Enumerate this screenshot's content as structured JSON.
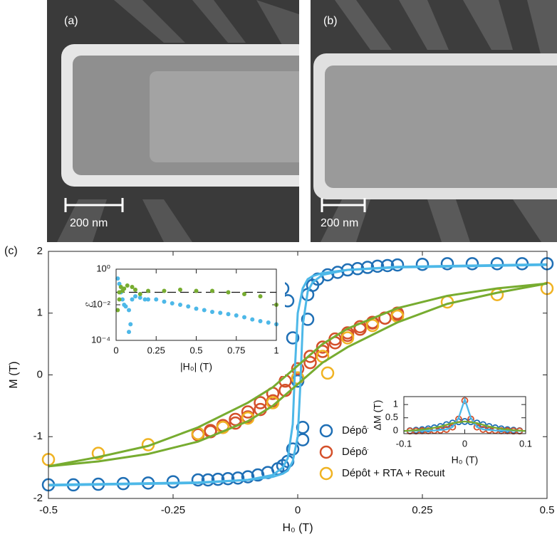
{
  "images": [
    {
      "label": "(a)",
      "scale_bar": "200 nm"
    },
    {
      "label": "(b)",
      "scale_bar": "200 nm"
    }
  ],
  "panel_label": "(c)",
  "chart_data": [
    {
      "type": "scatter",
      "x_label": "H₀ (T)",
      "y_label": "M (T)",
      "xlim": [
        -0.5,
        0.5
      ],
      "xticks": [
        -0.5,
        -0.25,
        0,
        0.25,
        0.5
      ],
      "ylim": [
        -2,
        2
      ],
      "yticks": [
        -2,
        -1,
        0,
        1,
        2
      ],
      "legend": "lower right",
      "series": [
        {
          "name": "Dépôt",
          "color": "#1f6fb5",
          "style": "circles",
          "x": [
            -0.5,
            -0.45,
            -0.4,
            -0.35,
            -0.3,
            -0.25,
            -0.2,
            -0.18,
            -0.16,
            -0.14,
            -0.12,
            -0.1,
            -0.08,
            -0.06,
            -0.04,
            -0.03,
            -0.02,
            -0.01,
            0,
            0.01,
            0.01,
            0.02,
            0.02,
            0.03,
            0.04,
            0.06,
            0.08,
            0.1,
            0.12,
            0.14,
            0.16,
            0.18,
            0.2,
            0.25,
            0.3,
            0.35,
            0.4,
            0.45,
            0.5,
            -0.01,
            -0.02,
            -0.03,
            -0.04,
            -0.06
          ],
          "values": [
            -1.78,
            -1.78,
            -1.77,
            -1.76,
            -1.75,
            -1.73,
            -1.7,
            -1.7,
            -1.69,
            -1.68,
            -1.67,
            -1.65,
            -1.62,
            -1.58,
            -1.52,
            -1.47,
            -1.4,
            -1.2,
            -0.1,
            -0.85,
            -1.05,
            0.9,
            1.3,
            1.45,
            1.55,
            1.62,
            1.66,
            1.7,
            1.72,
            1.74,
            1.76,
            1.77,
            1.78,
            1.79,
            1.8,
            1.8,
            1.8,
            1.8,
            1.8,
            0.6,
            1.2,
            1.4,
            1.5,
            1.6
          ]
        },
        {
          "name": "Dépôt + RTA",
          "color": "#d4502a",
          "style": "circles",
          "x": [
            -0.2,
            -0.175,
            -0.15,
            -0.125,
            -0.1,
            -0.075,
            -0.05,
            -0.025,
            0,
            0.025,
            0.05,
            0.075,
            0.1,
            0.125,
            0.15,
            0.175,
            0.2,
            -0.2,
            -0.175,
            -0.15,
            -0.125,
            -0.1,
            -0.075,
            -0.05,
            -0.025,
            0,
            0.025,
            0.05,
            0.075,
            0.1,
            0.125,
            0.15,
            0.175,
            0.2
          ],
          "values": [
            -0.95,
            -0.9,
            -0.82,
            -0.72,
            -0.6,
            -0.45,
            -0.3,
            -0.1,
            0.1,
            0.3,
            0.45,
            0.58,
            0.68,
            0.78,
            0.85,
            0.92,
            0.98,
            -0.97,
            -0.92,
            -0.85,
            -0.78,
            -0.68,
            -0.56,
            -0.42,
            -0.25,
            -0.05,
            0.2,
            0.38,
            0.52,
            0.64,
            0.74,
            0.84,
            0.92,
            1.0
          ]
        },
        {
          "name": "Dépôt + RTA + Recuit",
          "color": "#f0b323",
          "style": "circles",
          "x": [
            -0.5,
            -0.4,
            -0.3,
            -0.2,
            -0.15,
            -0.1,
            -0.05,
            0,
            0.05,
            0.1,
            0.15,
            0.2,
            0.3,
            0.4,
            0.5,
            0.06
          ],
          "values": [
            -1.37,
            -1.27,
            -1.13,
            -0.95,
            -0.85,
            -0.7,
            -0.45,
            -0.05,
            0.3,
            0.6,
            0.8,
            0.95,
            1.18,
            1.3,
            1.4,
            0.03
          ]
        },
        {
          "color": "#4db8e8",
          "style": "line",
          "x": [
            -0.5,
            -0.2,
            -0.1,
            -0.05,
            -0.03,
            -0.02,
            -0.01,
            0,
            0.005,
            0.01,
            0.02,
            0.03,
            0.05,
            0.1,
            0.2,
            0.5
          ],
          "values": [
            -1.78,
            -1.74,
            -1.7,
            -1.65,
            -1.6,
            -1.55,
            -1.4,
            -1.0,
            -0.2,
            0.8,
            1.35,
            1.5,
            1.62,
            1.7,
            1.75,
            1.79
          ]
        },
        {
          "color": "#4db8e8",
          "style": "line",
          "x": [
            0.5,
            0.2,
            0.1,
            0.05,
            0.03,
            0.02,
            0.01,
            0,
            -0.005,
            -0.01,
            -0.02,
            -0.03,
            -0.05,
            -0.1,
            -0.2,
            -0.5
          ],
          "values": [
            1.78,
            1.74,
            1.7,
            1.65,
            1.6,
            1.55,
            1.4,
            1.0,
            0.2,
            -0.8,
            -1.35,
            -1.5,
            -1.62,
            -1.7,
            -1.75,
            -1.79
          ]
        },
        {
          "color": "#77ac30",
          "style": "line",
          "x": [
            -0.5,
            -0.4,
            -0.3,
            -0.2,
            -0.1,
            -0.05,
            0,
            0.05,
            0.1,
            0.2,
            0.3,
            0.4,
            0.5
          ],
          "values": [
            -1.48,
            -1.4,
            -1.28,
            -1.08,
            -0.75,
            -0.5,
            -0.15,
            0.2,
            0.45,
            0.85,
            1.15,
            1.33,
            1.48
          ]
        },
        {
          "color": "#77ac30",
          "style": "line",
          "x": [
            0.5,
            0.4,
            0.3,
            0.2,
            0.1,
            0.05,
            0,
            -0.05,
            -0.1,
            -0.2,
            -0.3,
            -0.4,
            -0.5
          ],
          "values": [
            1.48,
            1.4,
            1.28,
            1.08,
            0.75,
            0.5,
            0.15,
            -0.2,
            -0.45,
            -0.85,
            -1.15,
            -1.33,
            -1.48
          ]
        }
      ]
    },
    {
      "type": "scatter",
      "x_label": "|H₀| (T)",
      "y_label": "ℰ",
      "log_y": true,
      "xlim": [
        0,
        1
      ],
      "xticks": [
        0,
        0.25,
        0.5,
        0.75,
        1
      ],
      "ylim": [
        0.0001,
        1
      ],
      "yticks": [
        {
          "value": 0.0001,
          "label": "10⁻⁴"
        },
        {
          "value": 0.01,
          "label": "10⁻²"
        },
        {
          "value": 1,
          "label": "10⁰"
        }
      ],
      "hline": 0.05,
      "series": [
        {
          "color": "#4db8e8",
          "style": "dots",
          "x": [
            0.01,
            0.02,
            0.03,
            0.04,
            0.05,
            0.06,
            0.08,
            0.1,
            0.12,
            0.15,
            0.18,
            0.2,
            0.25,
            0.3,
            0.35,
            0.4,
            0.45,
            0.5,
            0.55,
            0.6,
            0.65,
            0.7,
            0.75,
            0.8,
            0.85,
            0.9,
            0.95,
            1,
            0.08,
            0.09
          ],
          "values": [
            0.3,
            0.15,
            0.05,
            0.02,
            0.01,
            0.008,
            0.005,
            0.02,
            0.03,
            0.025,
            0.02,
            0.02,
            0.02,
            0.015,
            0.012,
            0.01,
            0.008,
            0.006,
            0.005,
            0.004,
            0.0035,
            0.003,
            0.0025,
            0.002,
            0.0015,
            0.0012,
            0.001,
            0.0008,
            0.0003,
            0.0008
          ]
        },
        {
          "color": "#77ac30",
          "style": "dots",
          "x": [
            0.01,
            0.02,
            0.03,
            0.05,
            0.07,
            0.1,
            0.12,
            0.15,
            0.2,
            0.3,
            0.4,
            0.5,
            0.6,
            0.7,
            0.8,
            0.9,
            1,
            0.02,
            0.04
          ],
          "values": [
            0.005,
            0.05,
            0.1,
            0.08,
            0.12,
            0.1,
            0.07,
            0.04,
            0.06,
            0.06,
            0.07,
            0.06,
            0.06,
            0.05,
            0.04,
            0.03,
            0.01,
            0.02,
            0.06
          ]
        }
      ]
    },
    {
      "type": "scatter",
      "x_label": "H₀ (T)",
      "y_label": "ΔM (T)",
      "xlim": [
        -0.1,
        0.1
      ],
      "xticks": [
        -0.1,
        0,
        0.1
      ],
      "ylim": [
        -0.1,
        1.3
      ],
      "yticks": [
        0,
        0.5,
        1
      ],
      "series": [
        {
          "color": "#4db8e8",
          "style": "line",
          "x": [
            -0.1,
            -0.05,
            -0.03,
            -0.02,
            -0.01,
            0,
            0.01,
            0.02,
            0.03,
            0.05,
            0.1
          ],
          "values": [
            0,
            0.02,
            0.06,
            0.15,
            0.5,
            1.2,
            0.5,
            0.15,
            0.06,
            0.02,
            0
          ]
        },
        {
          "color": "#77ac30",
          "style": "line",
          "x": [
            -0.1,
            -0.08,
            -0.06,
            -0.04,
            -0.02,
            0,
            0.02,
            0.04,
            0.06,
            0.08,
            0.1
          ],
          "values": [
            0,
            0.03,
            0.08,
            0.17,
            0.3,
            0.36,
            0.3,
            0.17,
            0.08,
            0.03,
            0
          ]
        },
        {
          "color": "#1f6fb5",
          "style": "circles",
          "x": [
            -0.09,
            -0.08,
            -0.07,
            -0.06,
            -0.05,
            -0.04,
            -0.03,
            -0.02,
            -0.01,
            0,
            0.01,
            0.02,
            0.03,
            0.04,
            0.05,
            0.06,
            0.07,
            0.08,
            0.09
          ],
          "values": [
            0.01,
            0.03,
            0.05,
            0.08,
            0.12,
            0.17,
            0.24,
            0.3,
            0.35,
            0.36,
            0.35,
            0.3,
            0.24,
            0.17,
            0.12,
            0.08,
            0.05,
            0.03,
            0.01
          ]
        },
        {
          "color": "#d4502a",
          "style": "circles",
          "x": [
            -0.09,
            -0.08,
            -0.07,
            -0.06,
            -0.05,
            -0.04,
            -0.03,
            -0.02,
            -0.01,
            0,
            0.01,
            0.02,
            0.03,
            0.04,
            0.05,
            0.06,
            0.07,
            0.08,
            0.09
          ],
          "values": [
            0,
            0,
            0.01,
            0.01,
            0.02,
            0.03,
            0.06,
            0.15,
            0.45,
            1.15,
            0.45,
            0.15,
            0.06,
            0.03,
            0.02,
            0.01,
            0.01,
            0,
            0
          ]
        }
      ]
    }
  ]
}
